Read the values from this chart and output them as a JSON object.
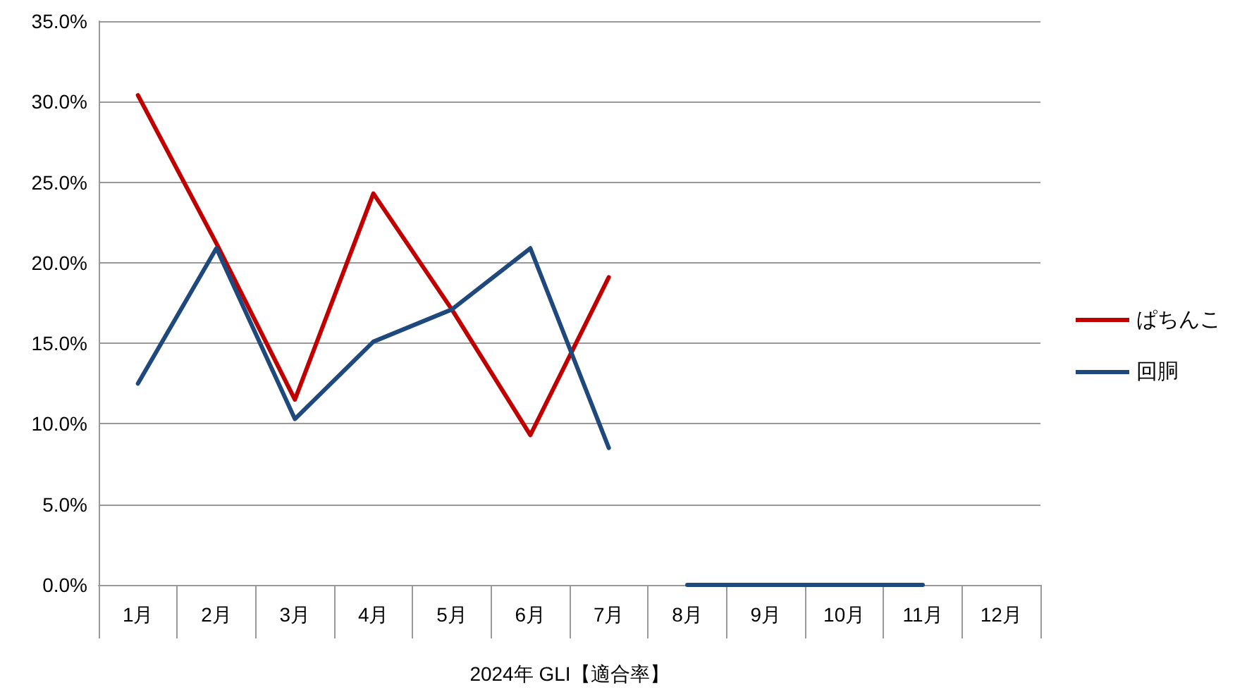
{
  "chart_data": {
    "type": "line",
    "xlabel": "2024年 GLI【適合率】",
    "categories": [
      "1月",
      "2月",
      "3月",
      "4月",
      "5月",
      "6月",
      "7月",
      "8月",
      "9月",
      "10月",
      "11月",
      "12月"
    ],
    "series": [
      {
        "name": "ぱちんこ",
        "color": "#c00000",
        "values": [
          30.4,
          21.2,
          11.5,
          24.3,
          17.1,
          9.3,
          19.1,
          null,
          null,
          null,
          null,
          null
        ]
      },
      {
        "name": "回胴",
        "color": "#1f497d",
        "values": [
          12.5,
          20.9,
          10.3,
          15.1,
          17.1,
          20.9,
          8.5,
          null,
          null,
          null,
          null,
          null
        ]
      },
      {
        "color": "#1f497d",
        "values": [
          null,
          null,
          null,
          null,
          null,
          null,
          null,
          0,
          0,
          0,
          0,
          null
        ]
      }
    ],
    "ylim": [
      0,
      35
    ],
    "yticks": [
      {
        "value": 0,
        "label": "0.0%"
      },
      {
        "value": 5,
        "label": "5.0%"
      },
      {
        "value": 10,
        "label": "10.0%"
      },
      {
        "value": 15,
        "label": "15.0%"
      },
      {
        "value": 20,
        "label": "20.0%"
      },
      {
        "value": 25,
        "label": "25.0%"
      },
      {
        "value": 30,
        "label": "30.0%"
      },
      {
        "value": 35,
        "label": "35.0%"
      }
    ],
    "grid": "y",
    "legend": "right",
    "marker": "none",
    "line_style": "solid"
  }
}
